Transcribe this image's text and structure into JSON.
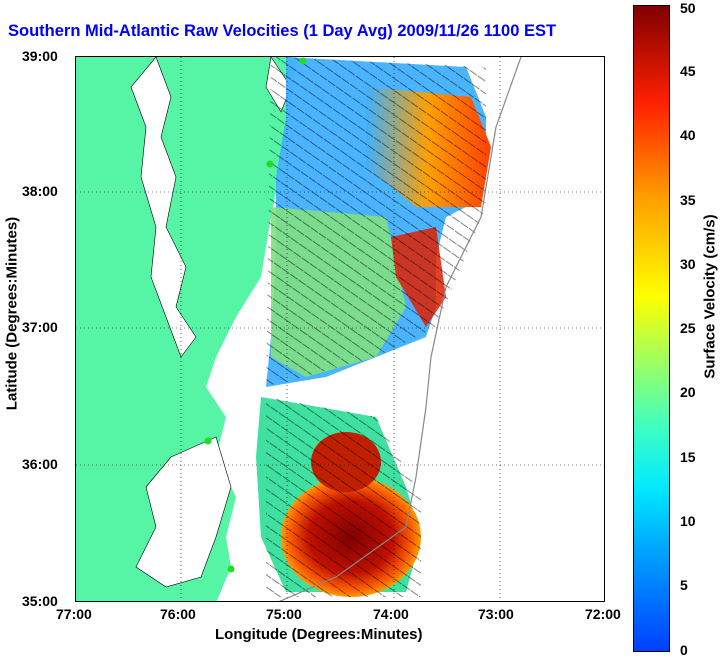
{
  "title": "Southern Mid-Atlantic Raw Velocities (1 Day Avg) 2009/11/26 1100 EST",
  "axes": {
    "xlabel": "Longitude (Degrees:Minutes)",
    "ylabel": "Latitude (Degrees:Minutes)",
    "x_ticks": [
      "77:00",
      "76:00",
      "75:00",
      "74:00",
      "73:00",
      "72:00"
    ],
    "y_ticks": [
      "39:00",
      "38:00",
      "37:00",
      "36:00",
      "35:00"
    ]
  },
  "colorbar": {
    "label": "Surface Velocity (cm/s)",
    "ticks": [
      "50",
      "45",
      "40",
      "35",
      "30",
      "25",
      "20",
      "15",
      "10",
      "5",
      "0"
    ],
    "range": [
      0,
      50
    ]
  },
  "colors": {
    "land": "#55f5a5",
    "title": "#0000ff",
    "station": "#22dd22"
  }
}
